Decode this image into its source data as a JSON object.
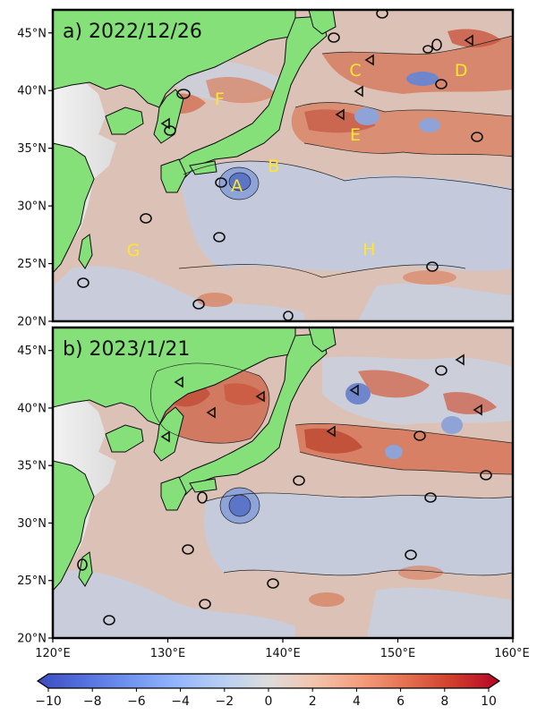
{
  "figure": {
    "lon_range": [
      120,
      160
    ],
    "lat_range": [
      20,
      47
    ],
    "x_ticks": [
      120,
      130,
      140,
      150,
      160
    ],
    "x_tick_labels": [
      "120°E",
      "130°E",
      "140°E",
      "150°E",
      "160°E"
    ],
    "y_ticks": [
      20,
      25,
      30,
      35,
      40,
      45
    ],
    "y_tick_labels": [
      "20°N",
      "25°N",
      "30°N",
      "35°N",
      "40°N",
      "45°N"
    ],
    "colors": {
      "land": "#85e07a",
      "ocean_base": "#dcc2b6",
      "cold_anomaly": "#4f6fd6",
      "warm_anomaly": "#c8432d",
      "label_yellow": "#ffe629"
    }
  },
  "panels": [
    {
      "id": "a",
      "title": "a) 2022/12/26",
      "labels": [
        {
          "text": "A",
          "lon": 136.0,
          "lat": 31.8
        },
        {
          "text": "B",
          "lon": 139.2,
          "lat": 33.5
        },
        {
          "text": "C",
          "lon": 146.3,
          "lat": 41.8
        },
        {
          "text": "D",
          "lon": 155.5,
          "lat": 41.8
        },
        {
          "text": "E",
          "lon": 146.3,
          "lat": 36.2
        },
        {
          "text": "F",
          "lon": 134.5,
          "lat": 39.3
        },
        {
          "text": "G",
          "lon": 127.0,
          "lat": 26.2
        },
        {
          "text": "H",
          "lon": 147.5,
          "lat": 26.3
        }
      ]
    },
    {
      "id": "b",
      "title": "b) 2023/1/21",
      "labels": []
    }
  ],
  "colorbar": {
    "min": -10,
    "max": 10,
    "ticks": [
      -10,
      -8,
      -6,
      -4,
      -2,
      0,
      2,
      4,
      6,
      8,
      10
    ],
    "tick_labels": [
      "−10",
      "−8",
      "−6",
      "−4",
      "−2",
      "0",
      "2",
      "4",
      "6",
      "8",
      "10"
    ],
    "colormap": "coolwarm",
    "extend": "both"
  }
}
